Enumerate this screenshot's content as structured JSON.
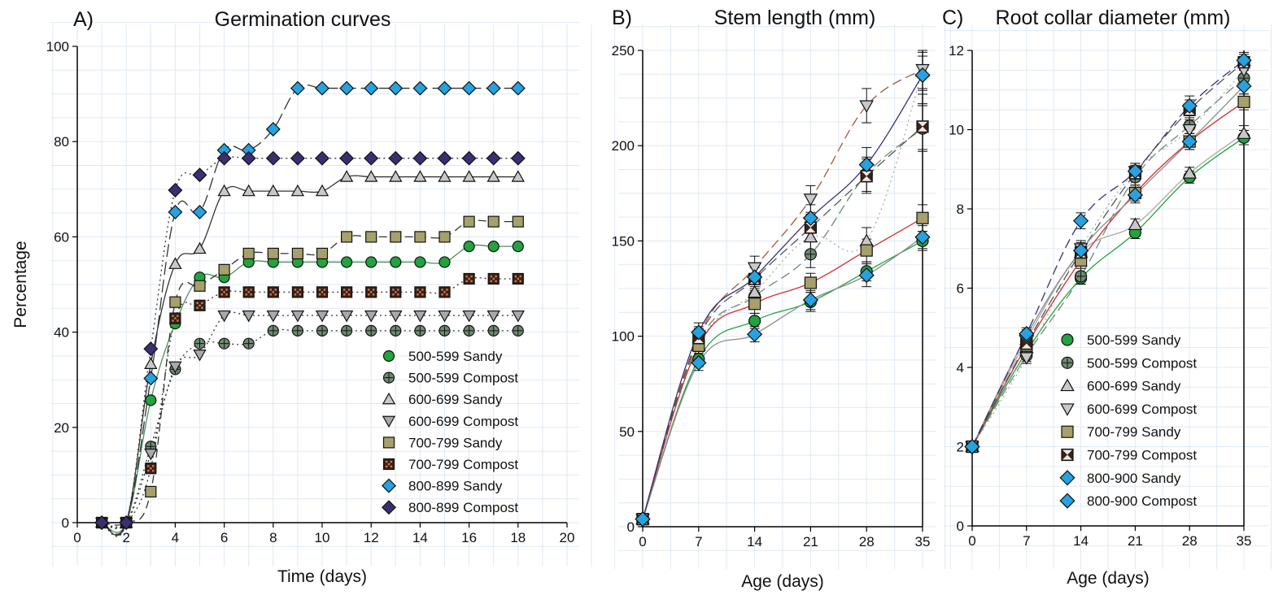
{
  "colors": {
    "green": "#22a33f",
    "grey_green": "#6f8a72",
    "light_grey": "#c8c8c8",
    "olive": "#a6a06a",
    "dark_brown": "#3b2114",
    "sky_blue": "#25a2df",
    "indigo": "#3a2f73"
  },
  "chart_data": [
    {
      "type": "line",
      "panel": "A)",
      "title": "Germination curves",
      "xlabel": "Time (days)",
      "ylabel": "Percentage",
      "xlim": [
        0,
        20
      ],
      "ylim": [
        0,
        100
      ],
      "xticks": [
        0,
        2,
        4,
        6,
        8,
        10,
        12,
        14,
        16,
        18,
        20
      ],
      "yticks": [
        0,
        20,
        40,
        60,
        80,
        100
      ],
      "grid": true,
      "legend_position": "bottom-right",
      "x": [
        1,
        2,
        3,
        4,
        5,
        6,
        7,
        8,
        9,
        10,
        11,
        12,
        13,
        14,
        15,
        16,
        17,
        18
      ],
      "series": [
        {
          "name": "500-599 Sandy",
          "marker": "circle",
          "fill": "#22a33f",
          "line": "#4f8f5f",
          "dash": "",
          "values": [
            0,
            0,
            25.7,
            41.8,
            51.5,
            51.5,
            54.7,
            54.7,
            54.7,
            54.7,
            54.7,
            54.7,
            54.7,
            54.7,
            54.7,
            58,
            58,
            58
          ]
        },
        {
          "name": "500-599 Compost",
          "marker": "circle-cross",
          "fill": "#6f8a72",
          "line": "#333333",
          "dash": "2,4",
          "values": [
            0,
            0,
            16,
            32.2,
            37.6,
            37.6,
            37.6,
            40.3,
            40.3,
            40.3,
            40.3,
            40.3,
            40.3,
            40.3,
            40.3,
            40.3,
            40.3,
            40.3
          ]
        },
        {
          "name": "600-699 Sandy",
          "marker": "triangle-up",
          "fill": "#c8c8c8",
          "line": "#333333",
          "dash": "",
          "values": [
            0,
            0,
            33.3,
            54.3,
            57.5,
            69.6,
            69.6,
            69.6,
            69.6,
            69.6,
            72.6,
            72.6,
            72.6,
            72.6,
            72.6,
            72.6,
            72.6,
            72.6
          ]
        },
        {
          "name": "600-699 Compost",
          "marker": "triangle-down",
          "fill": "#a8a8a8",
          "line": "#333333",
          "dash": "2,4",
          "values": [
            0,
            0,
            14.5,
            32.8,
            35.3,
            43.5,
            43.5,
            43.5,
            43.5,
            43.5,
            43.5,
            43.5,
            43.5,
            43.5,
            43.5,
            43.5,
            43.5,
            43.5
          ]
        },
        {
          "name": "700-799 Sandy",
          "marker": "square",
          "fill": "#a6a06a",
          "line": "#333333",
          "dash": "10,6",
          "values": [
            0,
            0,
            6.5,
            46.3,
            49.7,
            53.1,
            56.5,
            56.5,
            56.5,
            56.5,
            60,
            60,
            60,
            60,
            60,
            63.2,
            63.2,
            63.2
          ]
        },
        {
          "name": "700-799 Compost",
          "marker": "square-dots",
          "fill": "#3b2114",
          "line": "#333333",
          "dash": "2,4",
          "values": [
            0,
            0,
            11.4,
            42.9,
            45.6,
            48.4,
            48.4,
            48.4,
            48.4,
            48.4,
            48.4,
            48.4,
            48.4,
            48.4,
            48.4,
            51.2,
            51.2,
            51.2
          ]
        },
        {
          "name": "800-899 Sandy",
          "marker": "diamond",
          "fill": "#25a2df",
          "line": "#333333",
          "dash": "16,6",
          "values": [
            0,
            0,
            30.3,
            65.2,
            65.2,
            78.2,
            78.2,
            82.6,
            91.2,
            91.2,
            91.2,
            91.2,
            91.2,
            91.2,
            91.2,
            91.2,
            91.2,
            91.2
          ]
        },
        {
          "name": "800-899 Compost",
          "marker": "diamond",
          "fill": "#3a2f73",
          "line": "#333333",
          "dash": "2,4",
          "values": [
            0,
            0,
            36.5,
            69.8,
            73,
            76.5,
            76.5,
            76.5,
            76.5,
            76.5,
            76.5,
            76.5,
            76.5,
            76.5,
            76.5,
            76.5,
            76.5,
            76.5
          ]
        }
      ]
    },
    {
      "type": "line",
      "panel": "B)",
      "title": "Stem length (mm)",
      "xlabel": "Age (days)",
      "ylabel": "",
      "xlim": [
        0,
        35
      ],
      "ylim": [
        0,
        250
      ],
      "xticks": [
        0,
        7,
        14,
        21,
        28,
        35
      ],
      "yticks": [
        0,
        50,
        100,
        150,
        200,
        250
      ],
      "grid": true,
      "x": [
        0,
        7,
        14,
        21,
        28,
        35
      ],
      "series": [
        {
          "name": "500-599 Sandy",
          "marker": "circle",
          "fill": "#22a33f",
          "line": "#22a33f",
          "dash": "",
          "values": [
            4,
            88,
            108,
            118,
            134,
            150
          ],
          "err": [
            1,
            4,
            4,
            5,
            5,
            5
          ]
        },
        {
          "name": "500-599 Compost",
          "marker": "circle-cross",
          "fill": "#6f8a72",
          "line": "#6f8a72",
          "dash": "12,6",
          "values": [
            4,
            97,
            121,
            143,
            185,
            209
          ],
          "err": [
            1,
            5,
            5,
            7,
            9,
            12
          ]
        },
        {
          "name": "600-699 Sandy",
          "marker": "triangle-up",
          "fill": "#c8c8c8",
          "line": "#aaaaaa",
          "dash": "2,4",
          "values": [
            4,
            95,
            123,
            152,
            150,
            239
          ],
          "err": [
            1,
            5,
            6,
            7,
            7,
            10
          ]
        },
        {
          "name": "600-699 Compost",
          "marker": "triangle-down",
          "fill": "#c8c8c8",
          "line": "#a05a3c",
          "dash": "12,6",
          "values": [
            4,
            100,
            136,
            172,
            221,
            240
          ],
          "err": [
            1,
            5,
            6,
            7,
            9,
            10
          ]
        },
        {
          "name": "700-799 Sandy",
          "marker": "square",
          "fill": "#a6a06a",
          "line": "#d03030",
          "dash": "",
          "values": [
            4,
            95,
            117,
            128,
            145,
            162
          ],
          "err": [
            1,
            4,
            5,
            5,
            6,
            7
          ]
        },
        {
          "name": "700-799 Compost",
          "marker": "square-x",
          "fill": "#3b2114",
          "line": "#555555",
          "dash": "12,6",
          "values": [
            4,
            99,
            130,
            157,
            184,
            210
          ],
          "err": [
            1,
            5,
            6,
            7,
            9,
            12
          ]
        },
        {
          "name": "800-900 Sandy",
          "marker": "diamond",
          "fill": "#25a2df",
          "line": "#8c8c8c",
          "dash": "",
          "values": [
            4,
            86,
            101,
            119,
            132,
            152
          ],
          "err": [
            1,
            4,
            4,
            5,
            6,
            6
          ]
        },
        {
          "name": "800-900 Compost",
          "marker": "diamond",
          "fill": "#25a2df",
          "line": "#3a2f73",
          "dash": "",
          "values": [
            4,
            102,
            131,
            162,
            190,
            237
          ],
          "err": [
            1,
            5,
            6,
            7,
            9,
            10
          ]
        }
      ]
    },
    {
      "type": "line",
      "panel": "C)",
      "title": "Root collar diameter (mm)",
      "xlabel": "Age (days)",
      "ylabel": "",
      "xlim": [
        0,
        35
      ],
      "ylim": [
        0,
        12
      ],
      "xticks": [
        0,
        7,
        14,
        21,
        28,
        35
      ],
      "yticks": [
        0,
        2,
        4,
        6,
        8,
        10,
        12
      ],
      "grid": true,
      "legend_position": "center-left",
      "x": [
        0,
        7,
        14,
        21,
        28,
        35
      ],
      "series": [
        {
          "name": "500-599 Sandy",
          "marker": "circle",
          "fill": "#22a33f",
          "line": "#22a33f",
          "dash": "",
          "values": [
            2,
            4.4,
            6.25,
            7.4,
            8.8,
            9.8
          ],
          "err": [
            0.03,
            0.15,
            0.15,
            0.15,
            0.15,
            0.18
          ]
        },
        {
          "name": "500-599 Compost",
          "marker": "circle-cross",
          "fill": "#6f8a72",
          "line": "#6f8a72",
          "dash": "12,6",
          "values": [
            2,
            4.3,
            6.3,
            8.8,
            10.1,
            11.3
          ],
          "err": [
            0.03,
            0.15,
            0.2,
            0.2,
            0.2,
            0.2
          ]
        },
        {
          "name": "600-699 Sandy",
          "marker": "triangle-up",
          "fill": "#c8c8c8",
          "line": "#aaaaaa",
          "dash": "",
          "values": [
            2,
            4.7,
            6.9,
            7.6,
            8.9,
            9.9
          ],
          "err": [
            0.03,
            0.15,
            0.2,
            0.15,
            0.15,
            0.2
          ]
        },
        {
          "name": "600-699 Compost",
          "marker": "triangle-down",
          "fill": "#c8c8c8",
          "line": "#aaaaaa",
          "dash": "2,4",
          "values": [
            2,
            4.25,
            7.0,
            8.95,
            10.0,
            11.5
          ],
          "err": [
            0.03,
            0.15,
            0.2,
            0.2,
            0.2,
            0.2
          ]
        },
        {
          "name": "700-799 Sandy",
          "marker": "square",
          "fill": "#a6a06a",
          "line": "#d03030",
          "dash": "",
          "values": [
            2,
            4.55,
            6.7,
            8.4,
            9.7,
            10.7
          ],
          "err": [
            0.03,
            0.15,
            0.2,
            0.2,
            0.2,
            0.2
          ]
        },
        {
          "name": "700-799 Compost",
          "marker": "square-x",
          "fill": "#3b2114",
          "line": "#555555",
          "dash": "12,6",
          "values": [
            2,
            4.6,
            6.9,
            8.9,
            10.5,
            11.7
          ],
          "err": [
            0.03,
            0.15,
            0.2,
            0.2,
            0.25,
            0.2
          ]
        },
        {
          "name": "800-900 Sandy",
          "marker": "diamond",
          "fill": "#25a2df",
          "line": "#8c8c8c",
          "dash": "",
          "values": [
            2,
            4.8,
            6.95,
            8.35,
            9.7,
            11.1
          ],
          "err": [
            0.03,
            0.15,
            0.2,
            0.2,
            0.2,
            0.2
          ]
        },
        {
          "name": "800-900 Compost",
          "marker": "diamond",
          "fill": "#25a2df",
          "line": "#3a2f73",
          "dash": "12,6",
          "values": [
            2,
            4.85,
            7.7,
            8.95,
            10.6,
            11.75
          ],
          "err": [
            0.03,
            0.15,
            0.2,
            0.2,
            0.25,
            0.2
          ]
        }
      ]
    }
  ]
}
